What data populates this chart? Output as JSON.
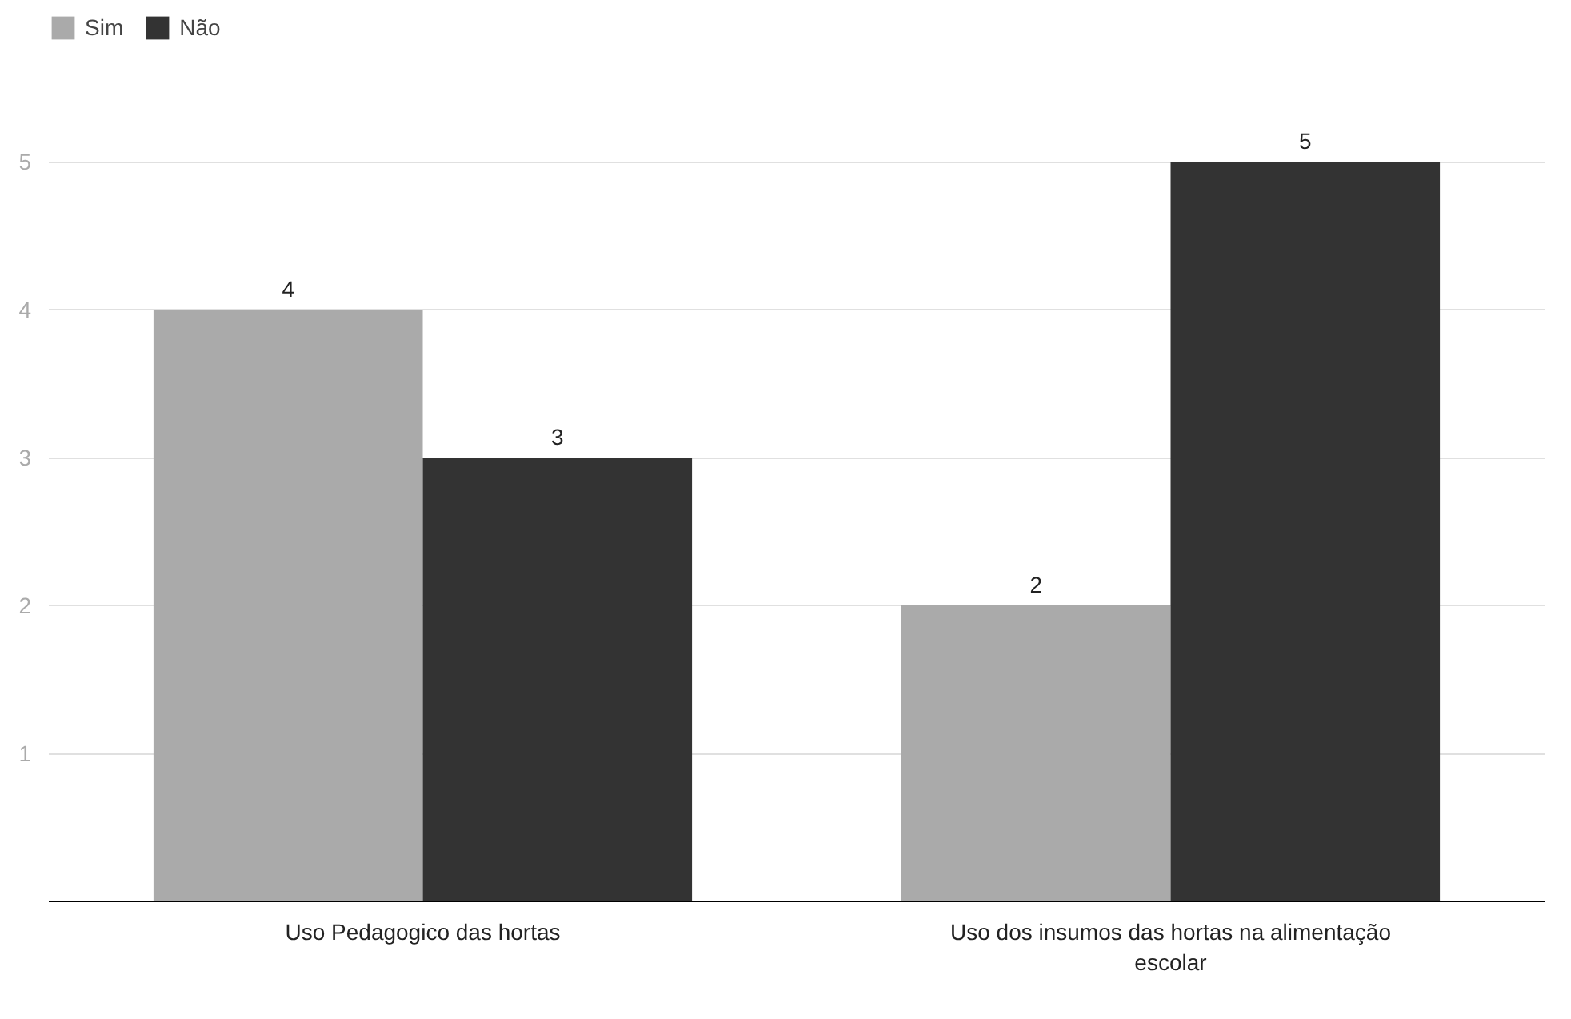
{
  "chart_data": {
    "type": "bar",
    "categories": [
      "Uso Pedagogico das hortas",
      "Uso dos insumos das hortas na alimentação escolar"
    ],
    "series": [
      {
        "name": "Sim",
        "color": "#aaaaaa",
        "values": [
          4,
          2
        ]
      },
      {
        "name": "Não",
        "color": "#333333",
        "values": [
          3,
          5
        ]
      }
    ],
    "ylim": [
      0,
      6
    ],
    "yticks": [
      1,
      2,
      3,
      4,
      5
    ],
    "grid": "y",
    "legend": "top left",
    "data_labels": true
  }
}
